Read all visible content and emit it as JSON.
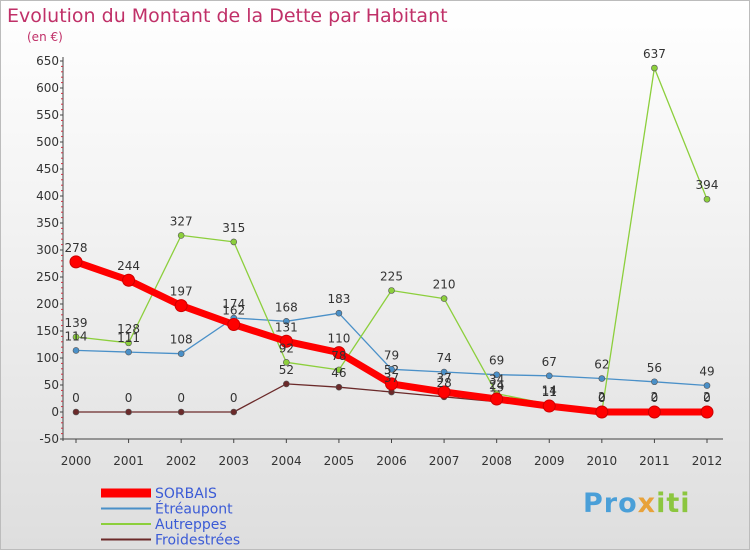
{
  "title": "Evolution du Montant de la Dette par Habitant",
  "subtitle": "(en €)",
  "logo": {
    "part1": "Pro",
    "part2": "x",
    "part3": "iti"
  },
  "chart_data": {
    "type": "line",
    "title": "Evolution du Montant de la Dette par Habitant",
    "subtitle": "(en €)",
    "x": [
      "2000",
      "2001",
      "2002",
      "2003",
      "2004",
      "2005",
      "2006",
      "2007",
      "2008",
      "2009",
      "2010",
      "2011",
      "2012"
    ],
    "ylim": [
      -50,
      650
    ],
    "yticks": [
      -50,
      0,
      50,
      100,
      150,
      200,
      250,
      300,
      350,
      400,
      450,
      500,
      550,
      600,
      650
    ],
    "ytick_labels": [
      "-50",
      "0",
      "50",
      "100",
      "150",
      "200",
      "250",
      "300",
      "350",
      "400",
      "450",
      "500",
      "550",
      "600",
      "650"
    ],
    "grid": false,
    "legend_position": "bottom-left",
    "series": [
      {
        "name": "SORBAIS",
        "color": "#ff0000",
        "values": [
          278,
          244,
          197,
          162,
          131,
          110,
          52,
          37,
          24,
          11,
          0,
          0,
          0
        ],
        "labels": [
          "278",
          "244",
          "197",
          "162",
          "131",
          "110",
          "52",
          "37",
          "24",
          "11",
          "0",
          "0",
          "0"
        ]
      },
      {
        "name": "Étréaupont",
        "color": "#4a90c8",
        "values": [
          114,
          111,
          108,
          174,
          168,
          183,
          79,
          74,
          69,
          67,
          62,
          56,
          49
        ],
        "labels": [
          "114",
          "111",
          "108",
          "174",
          "168",
          "183",
          "79",
          "74",
          "69",
          "67",
          "62",
          "56",
          "49"
        ]
      },
      {
        "name": "Autreppes",
        "color": "#8ccf3c",
        "values": [
          139,
          128,
          327,
          315,
          92,
          78,
          225,
          210,
          34,
          14,
          0,
          637,
          394
        ],
        "labels": [
          "139",
          "128",
          "327",
          "315",
          "92",
          "78",
          "225",
          "210",
          "34",
          "14",
          "0",
          "637",
          "394"
        ]
      },
      {
        "name": "Froidestrées",
        "color": "#6b2a2a",
        "values": [
          0,
          0,
          0,
          0,
          52,
          46,
          37,
          28,
          19,
          11,
          2,
          2,
          2
        ],
        "labels": [
          "0",
          "0",
          "0",
          "0",
          "52",
          "46",
          "37",
          "28",
          "19",
          "11",
          "2",
          "2",
          "2"
        ]
      }
    ]
  }
}
